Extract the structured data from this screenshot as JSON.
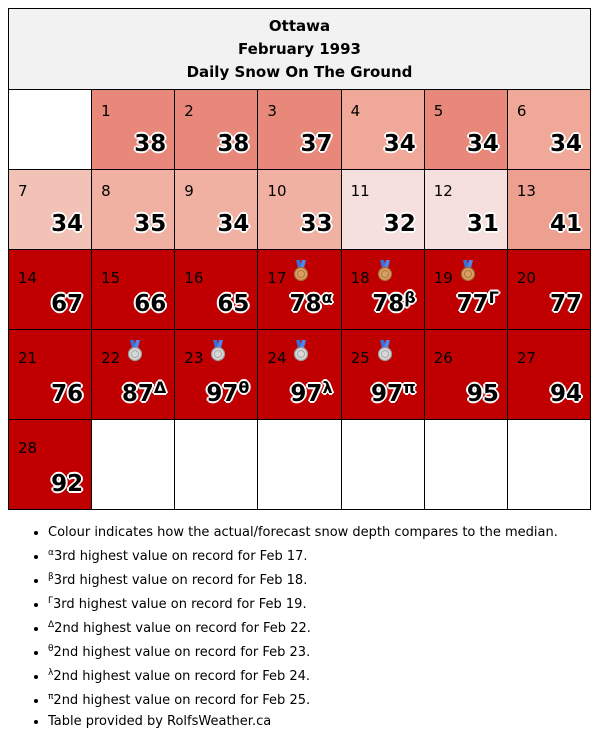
{
  "header": {
    "city": "Ottawa",
    "period": "February 1993",
    "subtitle": "Daily Snow On The Ground"
  },
  "colors": {
    "dark_red": "#c00000",
    "salmon": "#e8887a",
    "light_salmon": "#f0a898",
    "pale": "#f5d6d0",
    "title_bg": "#f2f2f2"
  },
  "weeks": [
    [
      null,
      {
        "day": "1",
        "value": "38",
        "sup": "",
        "color": "#e8887a",
        "medal": ""
      },
      {
        "day": "2",
        "value": "38",
        "sup": "",
        "color": "#e8887a",
        "medal": ""
      },
      {
        "day": "3",
        "value": "37",
        "sup": "",
        "color": "#e8887a",
        "medal": ""
      },
      {
        "day": "4",
        "value": "34",
        "sup": "",
        "color": "#f0a898",
        "medal": ""
      },
      {
        "day": "5",
        "value": "34",
        "sup": "",
        "color": "#e8887a",
        "medal": ""
      },
      {
        "day": "6",
        "value": "34",
        "sup": "",
        "color": "#f0a898",
        "medal": ""
      }
    ],
    [
      {
        "day": "7",
        "value": "34",
        "sup": "",
        "color": "#f2c2b6",
        "medal": ""
      },
      {
        "day": "8",
        "value": "35",
        "sup": "",
        "color": "#f0b0a2",
        "medal": ""
      },
      {
        "day": "9",
        "value": "34",
        "sup": "",
        "color": "#f0b0a2",
        "medal": ""
      },
      {
        "day": "10",
        "value": "33",
        "sup": "",
        "color": "#f0b0a2",
        "medal": ""
      },
      {
        "day": "11",
        "value": "32",
        "sup": "",
        "color": "#f5e0dd",
        "medal": ""
      },
      {
        "day": "12",
        "value": "31",
        "sup": "",
        "color": "#f5e0dd",
        "medal": ""
      },
      {
        "day": "13",
        "value": "41",
        "sup": "",
        "color": "#eda090",
        "medal": ""
      }
    ],
    [
      {
        "day": "14",
        "value": "67",
        "sup": "",
        "color": "#c00000",
        "medal": ""
      },
      {
        "day": "15",
        "value": "66",
        "sup": "",
        "color": "#c00000",
        "medal": ""
      },
      {
        "day": "16",
        "value": "65",
        "sup": "",
        "color": "#c00000",
        "medal": ""
      },
      {
        "day": "17",
        "value": "78",
        "sup": "α",
        "color": "#c00000",
        "medal": "bronze-medal-icon"
      },
      {
        "day": "18",
        "value": "78",
        "sup": "β",
        "color": "#c00000",
        "medal": "bronze-medal-icon"
      },
      {
        "day": "19",
        "value": "77",
        "sup": "Γ",
        "color": "#c00000",
        "medal": "bronze-medal-icon"
      },
      {
        "day": "20",
        "value": "77",
        "sup": "",
        "color": "#c00000",
        "medal": ""
      }
    ],
    [
      {
        "day": "21",
        "value": "76",
        "sup": "",
        "color": "#c00000",
        "medal": ""
      },
      {
        "day": "22",
        "value": "87",
        "sup": "Δ",
        "color": "#c00000",
        "medal": "silver-medal-icon"
      },
      {
        "day": "23",
        "value": "97",
        "sup": "θ",
        "color": "#c00000",
        "medal": "silver-medal-icon"
      },
      {
        "day": "24",
        "value": "97",
        "sup": "λ",
        "color": "#c00000",
        "medal": "silver-medal-icon"
      },
      {
        "day": "25",
        "value": "97",
        "sup": "π",
        "color": "#c00000",
        "medal": "silver-medal-icon"
      },
      {
        "day": "26",
        "value": "95",
        "sup": "",
        "color": "#c00000",
        "medal": ""
      },
      {
        "day": "27",
        "value": "94",
        "sup": "",
        "color": "#c00000",
        "medal": ""
      }
    ],
    [
      {
        "day": "28",
        "value": "92",
        "sup": "",
        "color": "#c00000",
        "medal": ""
      },
      null,
      null,
      null,
      null,
      null,
      null
    ]
  ],
  "notes": [
    {
      "sup": "",
      "text": "Colour indicates how the actual/forecast snow depth compares to the median."
    },
    {
      "sup": "α",
      "text": "3rd highest value on record for Feb 17."
    },
    {
      "sup": "β",
      "text": "3rd highest value on record for Feb 18."
    },
    {
      "sup": "Γ",
      "text": "3rd highest value on record for Feb 19."
    },
    {
      "sup": "Δ",
      "text": "2nd highest value on record for Feb 22."
    },
    {
      "sup": "θ",
      "text": "2nd highest value on record for Feb 23."
    },
    {
      "sup": "λ",
      "text": "2nd highest value on record for Feb 24."
    },
    {
      "sup": "π",
      "text": "2nd highest value on record for Feb 25."
    },
    {
      "sup": "",
      "text": "Table provided by RolfsWeather.ca"
    }
  ]
}
